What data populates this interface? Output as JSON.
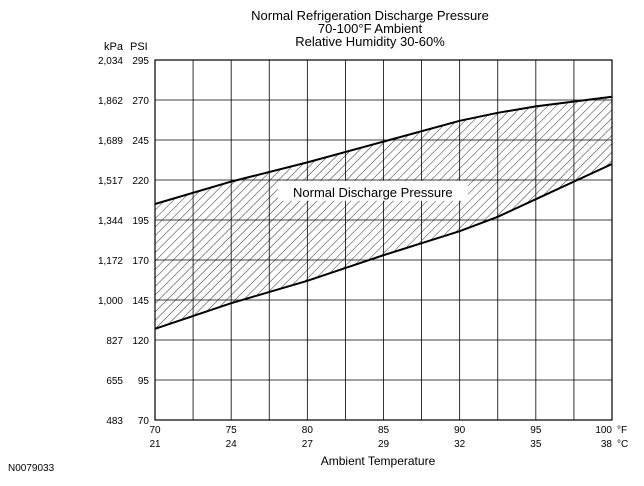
{
  "chart_data": {
    "type": "area",
    "title_lines": [
      "Normal Refrigeration Discharge Pressure",
      "70-100°F Ambient",
      "Relative Humidity 30-60%"
    ],
    "y_unit_left": "kPa",
    "y_unit_right": "PSI",
    "y_ticks_kpa": [
      "2,034",
      "1,862",
      "1,689",
      "1,517",
      "1,344",
      "1,172",
      "1,000",
      "827",
      "655",
      "483"
    ],
    "y_ticks_psi": [
      295,
      270,
      245,
      220,
      195,
      170,
      145,
      120,
      95,
      70
    ],
    "ylim_psi": [
      70,
      295
    ],
    "x_ticks_f": [
      70,
      75,
      80,
      85,
      90,
      95,
      100
    ],
    "x_ticks_c": [
      21,
      24,
      27,
      29,
      32,
      35,
      38
    ],
    "x_unit_f": "°F",
    "x_unit_c": "°C",
    "xlim_f": [
      70,
      100
    ],
    "xlabel": "Ambient Temperature",
    "band_label": "Normal Discharge Pressure",
    "series": [
      {
        "x": [
          70,
          75,
          80,
          85,
          90,
          92.5,
          95,
          100
        ],
        "values": [
          205,
          219,
          231,
          244,
          257,
          262,
          266,
          272
        ]
      },
      {
        "x": [
          70,
          75,
          80,
          85,
          90,
          92.5,
          95,
          100
        ],
        "values": [
          127,
          143,
          157,
          173,
          188,
          197,
          208,
          230
        ]
      }
    ],
    "grid": true
  },
  "figure_id": "N0079033"
}
